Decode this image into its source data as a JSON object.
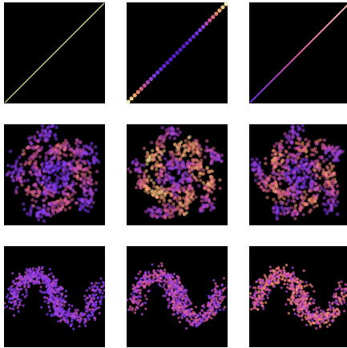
{
  "figure": {
    "rows": 3,
    "cols": 3,
    "background": "#ffffff",
    "panel_background": "#000000",
    "colormap": "magma",
    "colormap_stops": [
      "#000004",
      "#2b0c63",
      "#5b21d6",
      "#8a3df0",
      "#d652a6",
      "#f3876a",
      "#fdc57a",
      "#fcfdbf"
    ]
  },
  "chart_data": [
    {
      "type": "heatmap",
      "row": 0,
      "col": 0,
      "pattern": "diagonal",
      "variant": "thin-bright",
      "axes": "off"
    },
    {
      "type": "heatmap",
      "row": 0,
      "col": 1,
      "pattern": "diagonal",
      "variant": "dotted-blue-yellow",
      "axes": "off"
    },
    {
      "type": "heatmap",
      "row": 0,
      "col": 2,
      "pattern": "diagonal",
      "variant": "purple-pink",
      "axes": "off"
    },
    {
      "type": "heatmap",
      "row": 1,
      "col": 0,
      "pattern": "pinwheel",
      "arms": 5,
      "intensity": 0.65,
      "axes": "off"
    },
    {
      "type": "heatmap",
      "row": 1,
      "col": 1,
      "pattern": "pinwheel",
      "arms": 5,
      "intensity": 1.0,
      "axes": "off"
    },
    {
      "type": "heatmap",
      "row": 1,
      "col": 2,
      "pattern": "pinwheel",
      "arms": 5,
      "intensity": 0.8,
      "axes": "off"
    },
    {
      "type": "heatmap",
      "row": 2,
      "col": 0,
      "pattern": "two-moons",
      "intensity": 0.55,
      "axes": "off"
    },
    {
      "type": "heatmap",
      "row": 2,
      "col": 1,
      "pattern": "two-moons",
      "intensity": 0.7,
      "axes": "off"
    },
    {
      "type": "heatmap",
      "row": 2,
      "col": 2,
      "pattern": "two-moons",
      "intensity": 0.9,
      "axes": "off"
    }
  ]
}
